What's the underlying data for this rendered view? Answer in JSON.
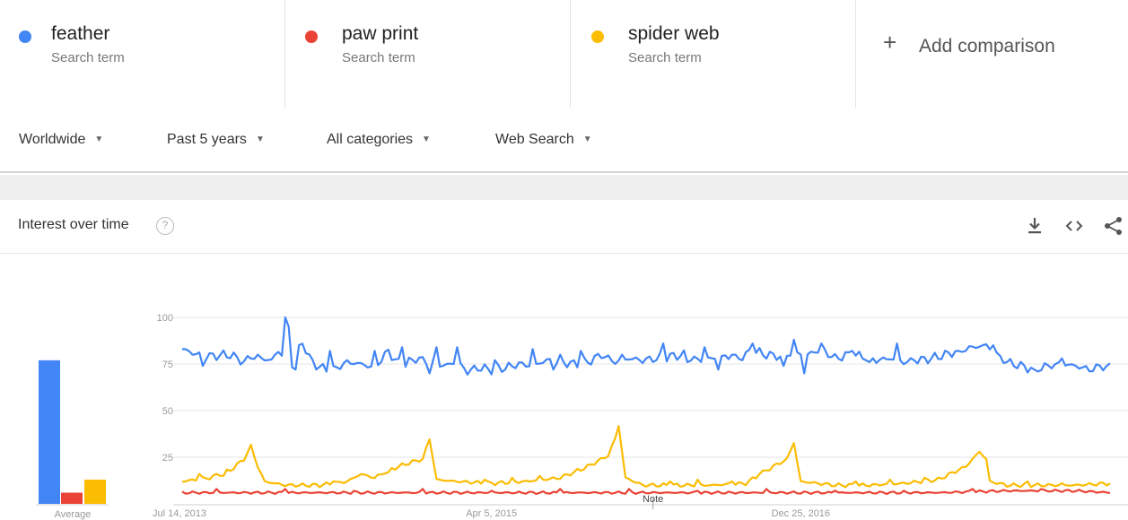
{
  "terms": [
    {
      "name": "feather",
      "subtitle": "Search term",
      "color": "#4285F4"
    },
    {
      "name": "paw print",
      "subtitle": "Search term",
      "color": "#EA4335"
    },
    {
      "name": "spider web",
      "subtitle": "Search term",
      "color": "#FBBC04"
    }
  ],
  "add_comparison": {
    "icon": "plus-icon",
    "label": "Add comparison"
  },
  "filters": {
    "region": "Worldwide",
    "time_range": "Past 5 years",
    "category": "All categories",
    "search_type": "Web Search"
  },
  "card": {
    "title": "Interest over time",
    "help_icon": "?",
    "tools": [
      "download-icon",
      "embed-icon",
      "share-icon"
    ]
  },
  "chart_data": {
    "type": "line",
    "title": "",
    "xlabel": "",
    "ylabel": "",
    "y_ticks": [
      "100",
      "75",
      "50",
      "25"
    ],
    "ylim": [
      0,
      100
    ],
    "x_tick_labels": [
      "Jul 14, 2013",
      "Apr 5, 2015",
      "Dec 25, 2016"
    ],
    "x_tick_index": [
      0,
      90,
      180
    ],
    "note_label": "Note",
    "note_index": 137,
    "grid": true,
    "points": 271,
    "series": [
      {
        "name": "feather",
        "color": "#4285F4",
        "keyframes": [
          [
            0,
            83
          ],
          [
            6,
            79
          ],
          [
            14,
            80
          ],
          [
            18,
            76
          ],
          [
            20,
            79
          ],
          [
            26,
            77
          ],
          [
            28,
            82
          ],
          [
            32,
            75
          ],
          [
            35,
            87
          ],
          [
            37,
            78
          ],
          [
            40,
            73
          ],
          [
            44,
            72
          ],
          [
            48,
            76
          ],
          [
            52,
            75
          ],
          [
            56,
            73
          ],
          [
            60,
            82
          ],
          [
            62,
            77
          ],
          [
            64,
            74
          ],
          [
            68,
            78
          ],
          [
            72,
            76
          ],
          [
            76,
            74
          ],
          [
            80,
            76
          ],
          [
            83,
            71
          ],
          [
            86,
            73
          ],
          [
            90,
            72
          ],
          [
            94,
            73
          ],
          [
            98,
            75
          ],
          [
            102,
            74
          ],
          [
            106,
            77
          ],
          [
            110,
            76
          ],
          [
            114,
            75
          ],
          [
            118,
            76
          ],
          [
            122,
            80
          ],
          [
            126,
            76
          ],
          [
            130,
            78
          ],
          [
            134,
            77
          ],
          [
            138,
            78
          ],
          [
            142,
            79
          ],
          [
            146,
            80
          ],
          [
            150,
            77
          ],
          [
            154,
            78
          ],
          [
            158,
            79
          ],
          [
            162,
            78
          ],
          [
            166,
            82
          ],
          [
            170,
            80
          ],
          [
            174,
            79
          ],
          [
            178,
            81
          ],
          [
            182,
            80
          ],
          [
            186,
            83
          ],
          [
            190,
            78
          ],
          [
            194,
            80
          ],
          [
            198,
            79
          ],
          [
            202,
            77
          ],
          [
            206,
            78
          ],
          [
            210,
            76
          ],
          [
            214,
            77
          ],
          [
            218,
            78
          ],
          [
            222,
            80
          ],
          [
            226,
            82
          ],
          [
            230,
            84
          ],
          [
            234,
            85
          ],
          [
            237,
            80
          ],
          [
            240,
            76
          ],
          [
            244,
            74
          ],
          [
            248,
            72
          ],
          [
            252,
            74
          ],
          [
            256,
            75
          ],
          [
            260,
            74
          ],
          [
            264,
            72
          ],
          [
            268,
            74
          ],
          [
            270,
            73
          ]
        ],
        "spikes": [
          [
            6,
            74
          ],
          [
            22,
            80
          ],
          [
            30,
            100
          ],
          [
            31,
            95
          ],
          [
            33,
            72
          ],
          [
            43,
            82
          ],
          [
            56,
            82
          ],
          [
            64,
            84
          ],
          [
            72,
            70
          ],
          [
            74,
            84
          ],
          [
            80,
            84
          ],
          [
            91,
            77
          ],
          [
            102,
            83
          ],
          [
            108,
            72
          ],
          [
            110,
            80
          ],
          [
            116,
            82
          ],
          [
            128,
            80
          ],
          [
            140,
            86
          ],
          [
            147,
            76
          ],
          [
            152,
            84
          ],
          [
            156,
            72
          ],
          [
            160,
            80
          ],
          [
            166,
            86
          ],
          [
            175,
            74
          ],
          [
            178,
            88
          ],
          [
            181,
            70
          ],
          [
            186,
            86
          ],
          [
            195,
            82
          ],
          [
            200,
            76
          ],
          [
            208,
            86
          ],
          [
            213,
            77
          ],
          [
            226,
            82
          ],
          [
            236,
            85
          ],
          [
            248,
            72
          ],
          [
            256,
            78
          ]
        ],
        "avg": 77
      },
      {
        "name": "paw print",
        "color": "#EA4335",
        "keyframes": [
          [
            0,
            6
          ],
          [
            20,
            6
          ],
          [
            40,
            6
          ],
          [
            60,
            6
          ],
          [
            80,
            6
          ],
          [
            100,
            6
          ],
          [
            120,
            6
          ],
          [
            140,
            6
          ],
          [
            160,
            6
          ],
          [
            180,
            6
          ],
          [
            200,
            6
          ],
          [
            220,
            6
          ],
          [
            240,
            7
          ],
          [
            260,
            7
          ],
          [
            270,
            6
          ]
        ],
        "spikes": [
          [
            10,
            8
          ],
          [
            30,
            8
          ],
          [
            50,
            7
          ],
          [
            70,
            8
          ],
          [
            90,
            7
          ],
          [
            110,
            8
          ],
          [
            130,
            8
          ],
          [
            150,
            7
          ],
          [
            170,
            8
          ],
          [
            190,
            7
          ],
          [
            210,
            7
          ],
          [
            230,
            8
          ],
          [
            250,
            8
          ]
        ],
        "avg": 6
      },
      {
        "name": "spider web",
        "color": "#FBBC04",
        "keyframes": [
          [
            0,
            12
          ],
          [
            8,
            14
          ],
          [
            14,
            18
          ],
          [
            18,
            24
          ],
          [
            20,
            31
          ],
          [
            22,
            20
          ],
          [
            24,
            12
          ],
          [
            30,
            10
          ],
          [
            40,
            10
          ],
          [
            48,
            12
          ],
          [
            52,
            16
          ],
          [
            56,
            14
          ],
          [
            60,
            18
          ],
          [
            66,
            22
          ],
          [
            70,
            24
          ],
          [
            72,
            35
          ],
          [
            73,
            24
          ],
          [
            74,
            13
          ],
          [
            80,
            12
          ],
          [
            90,
            11
          ],
          [
            100,
            12
          ],
          [
            110,
            14
          ],
          [
            118,
            20
          ],
          [
            124,
            26
          ],
          [
            126,
            35
          ],
          [
            127,
            42
          ],
          [
            128,
            28
          ],
          [
            129,
            14
          ],
          [
            134,
            10
          ],
          [
            144,
            10
          ],
          [
            154,
            10
          ],
          [
            164,
            11
          ],
          [
            170,
            18
          ],
          [
            176,
            24
          ],
          [
            178,
            33
          ],
          [
            179,
            22
          ],
          [
            180,
            12
          ],
          [
            190,
            10
          ],
          [
            200,
            10
          ],
          [
            210,
            11
          ],
          [
            220,
            13
          ],
          [
            228,
            20
          ],
          [
            232,
            28
          ],
          [
            234,
            24
          ],
          [
            235,
            12
          ],
          [
            240,
            10
          ],
          [
            250,
            10
          ],
          [
            260,
            10
          ],
          [
            270,
            11
          ]
        ],
        "spikes": [
          [
            5,
            16
          ],
          [
            12,
            15
          ],
          [
            44,
            12
          ],
          [
            60,
            17
          ],
          [
            88,
            13
          ],
          [
            96,
            14
          ],
          [
            104,
            15
          ],
          [
            114,
            17
          ],
          [
            142,
            12
          ],
          [
            150,
            13
          ],
          [
            160,
            12
          ],
          [
            168,
            16
          ],
          [
            196,
            12
          ],
          [
            206,
            13
          ],
          [
            216,
            14
          ],
          [
            224,
            17
          ],
          [
            246,
            12
          ],
          [
            256,
            11
          ]
        ],
        "avg": 13
      }
    ],
    "average_label": "Average"
  }
}
